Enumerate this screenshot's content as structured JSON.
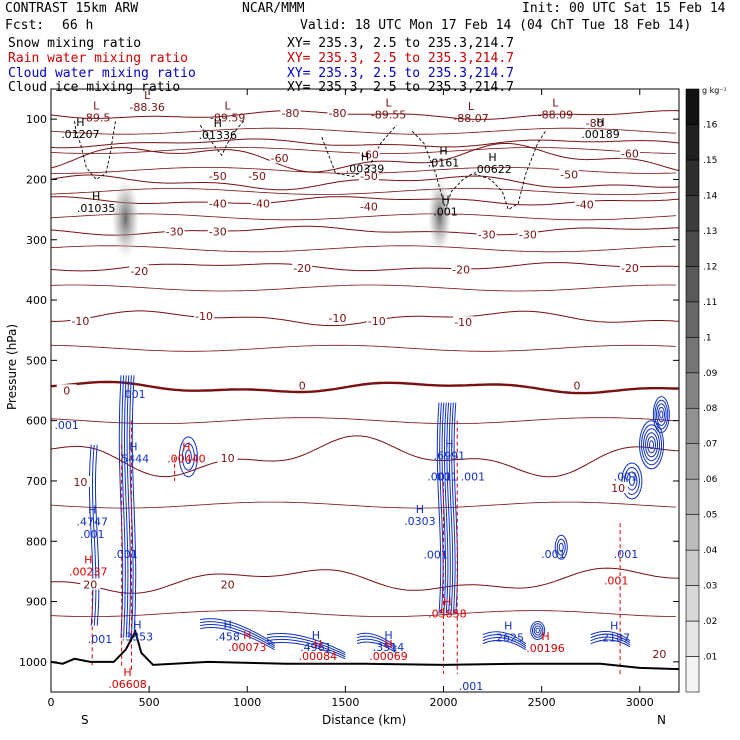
{
  "header": {
    "model": "CONTRAST 15km ARW",
    "org": "NCAR/MMM",
    "init": "Init: 00 UTC Sat 15 Feb 14",
    "fcst_label": "Fcst:",
    "fcst_value": "66 h",
    "valid": "Valid: 18 UTC Mon 17 Feb 14 (04 ChT Tue 18 Feb 14)"
  },
  "fields": [
    {
      "name": "Snow mixing ratio",
      "xy": "XY= 235.3,  2.5 to 235.3,214.7",
      "color": "#000000"
    },
    {
      "name": "Rain water mixing ratio",
      "xy": "XY= 235.3,  2.5 to 235.3,214.7",
      "color": "#cc0000"
    },
    {
      "name": "Cloud water mixing ratio",
      "xy": "XY= 235.3,  2.5 to 235.3,214.7",
      "color": "#0000cc"
    },
    {
      "name": "Cloud ice mixing ratio",
      "xy": "XY= 235.3,  2.5 to 235.3,214.7",
      "color": "#000000"
    }
  ],
  "colors": {
    "temperature": "#7a1010",
    "rain": "#dd0000",
    "cloud_water": "#1030c0",
    "terrain": "#000000"
  },
  "chart_data": {
    "type": "cross-section",
    "xlabel": "Distance (km)",
    "ylabel": "Pressure (hPa)",
    "xlim": [
      0,
      3200
    ],
    "ylim": [
      1050,
      50
    ],
    "x_ticks": [
      0,
      500,
      1000,
      1500,
      2000,
      2500,
      3000
    ],
    "y_ticks": [
      100,
      200,
      300,
      400,
      500,
      600,
      700,
      800,
      900,
      1000
    ],
    "x_end_labels": {
      "left": "S",
      "right": "N"
    },
    "colorbar": {
      "unit": "g kg⁻¹",
      "ticks": [
        ".01",
        ".02",
        ".03",
        ".04",
        ".05",
        ".06",
        ".07",
        ".08",
        ".09",
        ".1",
        ".11",
        ".12",
        ".13",
        ".14",
        ".15",
        ".16"
      ]
    },
    "isotherms": [
      {
        "t": -80,
        "p": 93
      },
      {
        "t": -70,
        "p": 140
      },
      {
        "t": -60,
        "p": 165
      },
      {
        "t": -50,
        "p": 205
      },
      {
        "t": -40,
        "p": 235
      },
      {
        "t": -30,
        "p": 285
      },
      {
        "t": -20,
        "p": 345
      },
      {
        "t": -10,
        "p": 430
      },
      {
        "t": 0,
        "p": 545
      },
      {
        "t": 10,
        "p": 660
      },
      {
        "t": 20,
        "p": 865
      }
    ],
    "isotherm_labels": [
      {
        "text": "-80",
        "x": 1220,
        "p": 93
      },
      {
        "text": "-80",
        "x": 1460,
        "p": 93
      },
      {
        "text": "-80",
        "x": 2770,
        "p": 110
      },
      {
        "text": "-60",
        "x": 1165,
        "p": 168
      },
      {
        "text": "-60",
        "x": 2950,
        "p": 160
      },
      {
        "text": "-60",
        "x": 1625,
        "p": 162
      },
      {
        "text": "-50",
        "x": 850,
        "p": 198
      },
      {
        "text": "-50",
        "x": 1050,
        "p": 198
      },
      {
        "text": "-50",
        "x": 2640,
        "p": 195
      },
      {
        "text": "-50",
        "x": 1620,
        "p": 198
      },
      {
        "text": "-40",
        "x": 850,
        "p": 243
      },
      {
        "text": "-40",
        "x": 1070,
        "p": 243
      },
      {
        "text": "-40",
        "x": 1620,
        "p": 248
      },
      {
        "text": "-40",
        "x": 2720,
        "p": 245
      },
      {
        "text": "-30",
        "x": 630,
        "p": 290
      },
      {
        "text": "-30",
        "x": 850,
        "p": 290
      },
      {
        "text": "-30",
        "x": 2220,
        "p": 295
      },
      {
        "text": "-30",
        "x": 2430,
        "p": 295
      },
      {
        "text": "-20",
        "x": 450,
        "p": 355
      },
      {
        "text": "-20",
        "x": 1280,
        "p": 350
      },
      {
        "text": "-20",
        "x": 2090,
        "p": 353
      },
      {
        "text": "-20",
        "x": 2950,
        "p": 350
      },
      {
        "text": "-10",
        "x": 150,
        "p": 438
      },
      {
        "text": "-10",
        "x": 780,
        "p": 430
      },
      {
        "text": "-10",
        "x": 1460,
        "p": 433
      },
      {
        "text": "-10",
        "x": 1660,
        "p": 438
      },
      {
        "text": "-10",
        "x": 2100,
        "p": 440
      },
      {
        "text": "0",
        "x": 80,
        "p": 553
      },
      {
        "text": "0",
        "x": 1280,
        "p": 545
      },
      {
        "text": "0",
        "x": 2680,
        "p": 545
      },
      {
        "text": "10",
        "x": 900,
        "p": 665
      },
      {
        "text": "10",
        "x": 2890,
        "p": 715
      },
      {
        "text": "10",
        "x": 150,
        "p": 705
      },
      {
        "text": "20",
        "x": 900,
        "p": 875
      },
      {
        "text": "20",
        "x": 200,
        "p": 875
      },
      {
        "text": "20",
        "x": 3100,
        "p": 990
      }
    ],
    "extrema_labels": [
      {
        "kind": "L",
        "value": "-89.5",
        "x": 230,
        "p": 102,
        "color": "#7a1010"
      },
      {
        "kind": "L",
        "value": "-88.36",
        "x": 490,
        "p": 85,
        "color": "#7a1010"
      },
      {
        "kind": "L",
        "value": "-89.59",
        "x": 900,
        "p": 102,
        "color": "#7a1010"
      },
      {
        "kind": "L",
        "value": "-89.55",
        "x": 1720,
        "p": 97,
        "color": "#7a1010"
      },
      {
        "kind": "L",
        "value": "-88.07",
        "x": 2140,
        "p": 103,
        "color": "#7a1010"
      },
      {
        "kind": "L",
        "value": "-88.09",
        "x": 2570,
        "p": 97,
        "color": "#7a1010"
      },
      {
        "kind": "H",
        "value": ".01207",
        "x": 150,
        "p": 130,
        "color": "#000000"
      },
      {
        "kind": "H",
        "value": ".01336",
        "x": 850,
        "p": 131,
        "color": "#000000"
      },
      {
        "kind": "H",
        "value": ".00339",
        "x": 1600,
        "p": 187,
        "color": "#000000"
      },
      {
        "kind": "H",
        "value": ".0161",
        "x": 2000,
        "p": 177,
        "color": "#000000"
      },
      {
        "kind": "H",
        "value": ".00622",
        "x": 2250,
        "p": 188,
        "color": "#000000"
      },
      {
        "kind": "H",
        "value": ".00189",
        "x": 2800,
        "p": 130,
        "color": "#000000"
      },
      {
        "kind": "H",
        "value": ".01035",
        "x": 230,
        "p": 252,
        "color": "#000000"
      },
      {
        "kind": "H",
        "value": ".001",
        "x": 2010,
        "p": 258,
        "color": "#000000"
      },
      {
        "kind": "H",
        "value": ".5444",
        "x": 420,
        "p": 668,
        "color": "#1030c0"
      },
      {
        "kind": "H",
        "value": ".4747",
        "x": 210,
        "p": 772,
        "color": "#1030c0"
      },
      {
        "kind": "H",
        "value": ".0303",
        "x": 1880,
        "p": 771,
        "color": "#1030c0"
      },
      {
        "kind": "H",
        "value": ".6991",
        "x": 2030,
        "p": 663,
        "color": "#1030c0"
      },
      {
        "kind": "H",
        "value": ".3353",
        "x": 440,
        "p": 963,
        "color": "#1030c0"
      },
      {
        "kind": "H",
        "value": ".458",
        "x": 900,
        "p": 963,
        "color": "#1030c0"
      },
      {
        "kind": "H",
        "value": ".4961",
        "x": 1350,
        "p": 980,
        "color": "#1030c0"
      },
      {
        "kind": "H",
        "value": ".3514",
        "x": 1720,
        "p": 980,
        "color": "#1030c0"
      },
      {
        "kind": "H",
        "value": ".2625",
        "x": 2330,
        "p": 965,
        "color": "#1030c0"
      },
      {
        "kind": "H",
        "value": ".2187",
        "x": 2870,
        "p": 965,
        "color": "#1030c0"
      },
      {
        "kind": "H",
        "value": ".00440",
        "x": 690,
        "p": 668,
        "color": "#dd0000"
      },
      {
        "kind": "H",
        "value": ".00237",
        "x": 190,
        "p": 855,
        "color": "#dd0000"
      },
      {
        "kind": "H",
        "value": ".06608",
        "x": 390,
        "p": 1042,
        "color": "#dd0000"
      },
      {
        "kind": "H",
        "value": ".00073",
        "x": 1000,
        "p": 980,
        "color": "#dd0000"
      },
      {
        "kind": "H",
        "value": ".00084",
        "x": 1360,
        "p": 995,
        "color": "#dd0000"
      },
      {
        "kind": "H",
        "value": ".00069",
        "x": 1720,
        "p": 995,
        "color": "#dd0000"
      },
      {
        "kind": "H",
        "value": ".05858",
        "x": 2020,
        "p": 925,
        "color": "#dd0000"
      },
      {
        "kind": "H",
        "value": ".00196",
        "x": 2520,
        "p": 982,
        "color": "#dd0000"
      }
    ],
    "cloud_water_labels": [
      {
        "text": ".001",
        "x": 80,
        "p": 607
      },
      {
        "text": ".001",
        "x": 420,
        "p": 556
      },
      {
        "text": ".001",
        "x": 210,
        "p": 788
      },
      {
        "text": ".001",
        "x": 380,
        "p": 821
      },
      {
        "text": ".001",
        "x": 1980,
        "p": 693
      },
      {
        "text": ".001",
        "x": 2150,
        "p": 693
      },
      {
        "text": ".001",
        "x": 2010,
        "p": 693
      },
      {
        "text": ".001",
        "x": 1960,
        "p": 822
      },
      {
        "text": ".001",
        "x": 2560,
        "p": 821
      },
      {
        "text": ".001",
        "x": 2930,
        "p": 821
      },
      {
        "text": ".001",
        "x": 2930,
        "p": 693
      },
      {
        "text": ".001",
        "x": 250,
        "p": 962
      },
      {
        "text": ".001",
        "x": 2140,
        "p": 1040
      }
    ],
    "rain_labels": [
      {
        "text": ".001",
        "x": 2880,
        "p": 865
      }
    ]
  }
}
